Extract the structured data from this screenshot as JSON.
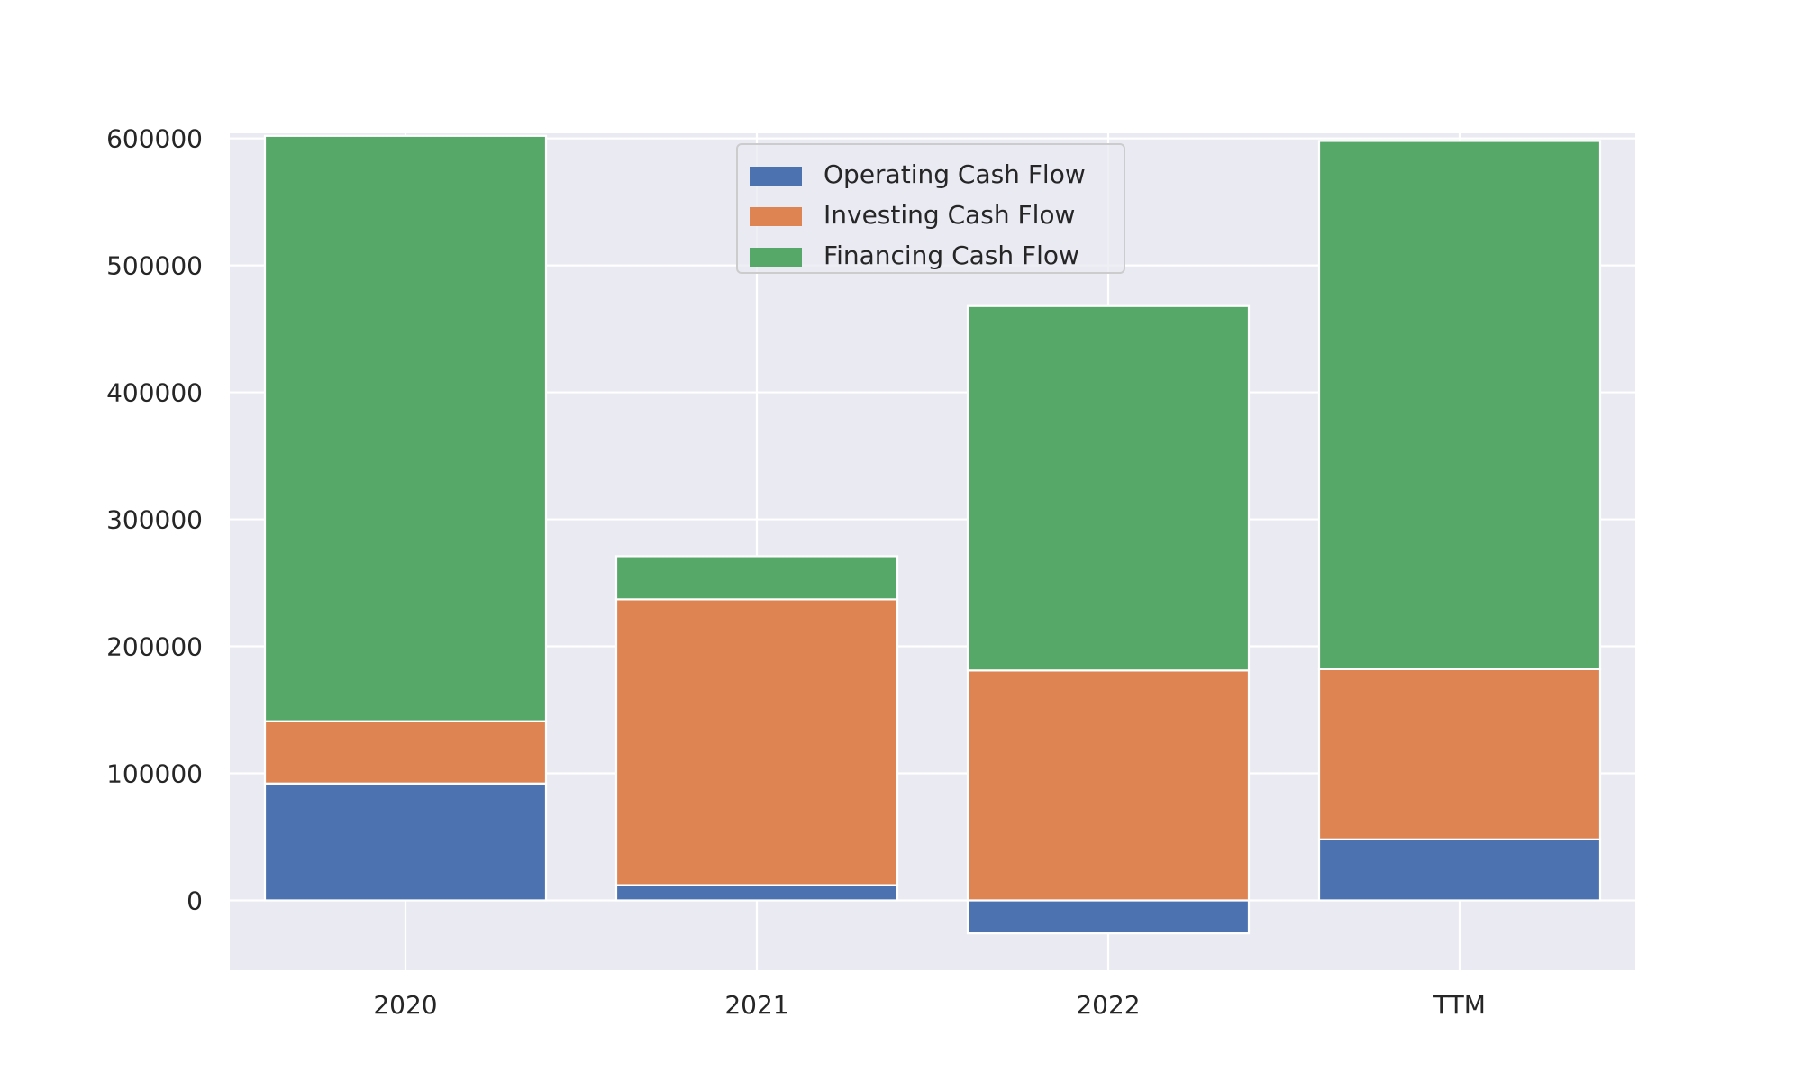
{
  "chart_data": {
    "type": "bar",
    "stacked": true,
    "categories": [
      "2020",
      "2021",
      "2022",
      "TTM"
    ],
    "series": [
      {
        "name": "Operating Cash Flow",
        "color": "#4c72b0",
        "values": [
          92000,
          12000,
          -26000,
          48000
        ]
      },
      {
        "name": "Investing Cash Flow",
        "color": "#dd8452",
        "values": [
          49000,
          225000,
          181000,
          134000
        ]
      },
      {
        "name": "Financing Cash Flow",
        "color": "#55a868",
        "values": [
          461000,
          34000,
          287000,
          416000
        ]
      }
    ],
    "ylim": [
      -55000,
      604000
    ],
    "yticks": [
      "0",
      "100000",
      "200000",
      "300000",
      "400000",
      "500000",
      "600000"
    ],
    "ytick_values": [
      0,
      100000,
      200000,
      300000,
      400000,
      500000,
      600000
    ],
    "grid": true,
    "legend_position": "top-center",
    "background": "#eaeaf2"
  }
}
